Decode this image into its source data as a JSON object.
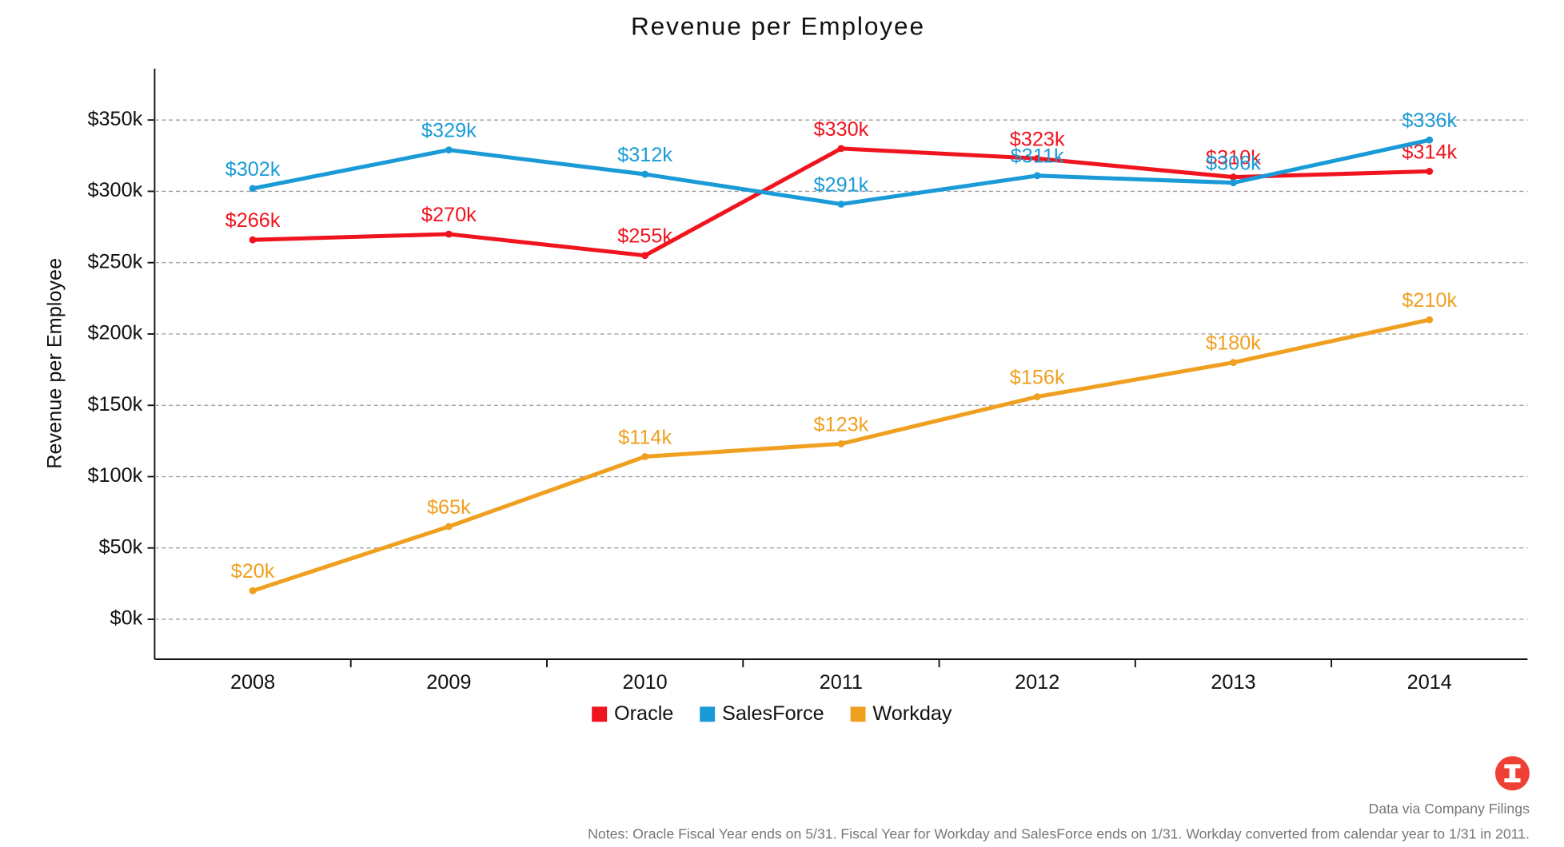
{
  "chart_data": {
    "type": "line",
    "title": "Revenue per Employee",
    "y_label": "Revenue per Employee",
    "categories": [
      "2008",
      "2009",
      "2010",
      "2011",
      "2012",
      "2013",
      "2014"
    ],
    "series": [
      {
        "name": "Oracle",
        "color": "#f0141e",
        "values": [
          266,
          270,
          255,
          330,
          323,
          310,
          314
        ],
        "value_labels": [
          "$266k",
          "$270k",
          "$255k",
          "$330k",
          "$323k",
          "$310k",
          "$314k"
        ]
      },
      {
        "name": "SalesForce",
        "color": "#1a9bd7",
        "values": [
          302,
          329,
          312,
          291,
          311,
          306,
          336
        ],
        "value_labels": [
          "$302k",
          "$329k",
          "$312k",
          "$291k",
          "$311k",
          "$306k",
          "$336k"
        ]
      },
      {
        "name": "Workday",
        "color": "#f0a020",
        "values": [
          20,
          65,
          114,
          123,
          156,
          180,
          210
        ],
        "value_labels": [
          "$20k",
          "$65k",
          "$114k",
          "$123k",
          "$156k",
          "$180k",
          "$210k"
        ]
      }
    ],
    "ylim": [
      -28,
      386
    ],
    "yticks": [
      {
        "value": 0,
        "label": "$0k"
      },
      {
        "value": 50,
        "label": "$50k"
      },
      {
        "value": 100,
        "label": "$100k"
      },
      {
        "value": 150,
        "label": "$150k"
      },
      {
        "value": 200,
        "label": "$200k"
      },
      {
        "value": 250,
        "label": "$250k"
      },
      {
        "value": 300,
        "label": "$300k"
      },
      {
        "value": 350,
        "label": "$350k"
      }
    ],
    "grid": true,
    "legend": "bottom",
    "source": "Data via Company Filings",
    "notes": "Notes: Oracle Fiscal Year ends on 5/31. Fiscal Year for Workday and SalesForce ends on 1/31. Workday converted from calendar year to 1/31 in 2011."
  }
}
